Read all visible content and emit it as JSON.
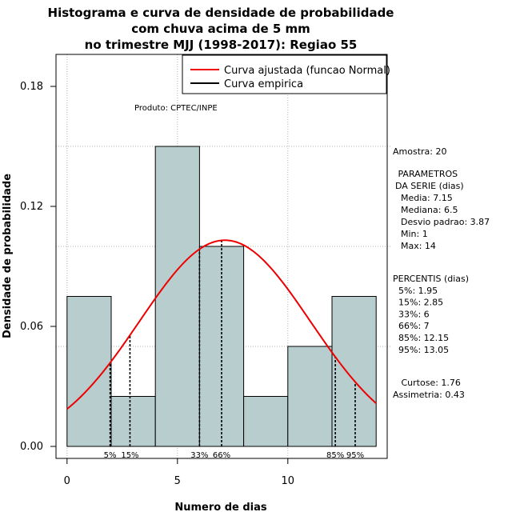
{
  "chart_data": {
    "type": "bar",
    "title_lines": [
      "Histograma e curva de densidade de probabilidade",
      "com chuva acima de 5 mm",
      "no trimestre MJJ (1998-2017): Regiao 55"
    ],
    "xlabel": "Numero de dias",
    "ylabel": "Densidade de probabilidade",
    "xlim": [
      -0.5,
      14.5
    ],
    "ylim": [
      -0.006,
      0.196
    ],
    "x_ticks": [
      0,
      5,
      10
    ],
    "y_ticks": [
      0.0,
      0.06,
      0.12,
      0.18
    ],
    "y_tick_labels": [
      "0.00",
      "0.06",
      "0.12",
      "0.18"
    ],
    "grid": true,
    "bins": [
      {
        "x0": 0,
        "x1": 2,
        "density": 0.075
      },
      {
        "x0": 2,
        "x1": 4,
        "density": 0.025
      },
      {
        "x0": 4,
        "x1": 6,
        "density": 0.15
      },
      {
        "x0": 6,
        "x1": 8,
        "density": 0.1
      },
      {
        "x0": 8,
        "x1": 10,
        "density": 0.025
      },
      {
        "x0": 10,
        "x1": 12,
        "density": 0.05
      },
      {
        "x0": 12,
        "x1": 14,
        "density": 0.075
      }
    ],
    "normal_curve": {
      "mean": 7.15,
      "sd": 3.87,
      "x_range": [
        0,
        14
      ],
      "color": "#ee0000"
    },
    "percentiles": [
      {
        "label": "5%",
        "x": 1.95
      },
      {
        "label": "15%",
        "x": 2.85
      },
      {
        "label": "33%",
        "x": 6
      },
      {
        "label": "66%",
        "x": 7
      },
      {
        "label": "85%",
        "x": 12.15
      },
      {
        "label": "95%",
        "x": 13.05
      }
    ],
    "bar_color": "#b8cece",
    "legend": {
      "placement": "top-right",
      "entries": [
        {
          "label": "Curva ajustada (funcao Normal)",
          "color": "#ee0000"
        },
        {
          "label": "Curva empirica",
          "color": "#000000"
        }
      ]
    },
    "annotation": "Produto: CPTEC/INPE"
  },
  "side_panel": {
    "amostra": "Amostra: 20",
    "parametros": [
      " PARAMETROS",
      "DA SERIE (dias)",
      "  Media: 7.15",
      "  Mediana: 6.5",
      "  Desvio padrao: 3.87",
      "  Min: 1",
      "  Max: 14"
    ],
    "percentis": [
      "PERCENTIS (dias)",
      "  5%: 1.95",
      "  15%: 2.85",
      "  33%: 6",
      "  66%: 7",
      "  85%: 12.15",
      "  95%: 13.05"
    ],
    "stats": [
      "   Curtose: 1.76",
      "Assimetria: 0.43"
    ]
  }
}
